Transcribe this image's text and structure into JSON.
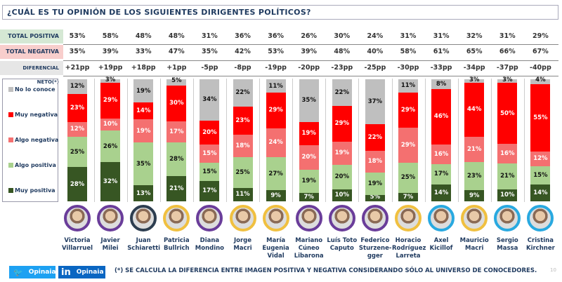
{
  "title": "¿CUÁL ES TU OPINIÓN DE LOS SIGUIENTES DIRIGENTES POLÍTICOS?",
  "rows": {
    "positive_label": "TOTAL POSITIVA",
    "negative_label": "TOTAL NEGATIVA",
    "net_label": "DIFERENCIAL NETO(*)"
  },
  "colors": {
    "no_lo_conoce": "#bfbfbf",
    "muy_negativa": "#ff0000",
    "algo_negativa": "#f47070",
    "algo_positiva": "#a9d18e",
    "muy_positiva": "#375623",
    "positive_bg": "#d5e8d4",
    "negative_bg": "#f8cecc",
    "net_bg": "#e6e6e6"
  },
  "chart_data": {
    "type": "bar",
    "stacked": true,
    "legend": [
      "No lo conoce",
      "Muy negativa",
      "Algo negativa",
      "Algo positiva",
      "Muy positiva"
    ],
    "categories": [
      "Victoria Villarruel",
      "Javier Milei",
      "Juan Schiaretti",
      "Patricia Bullrich",
      "Diana Mondino",
      "Jorge Macri",
      "María Eugenia Vidal",
      "Mariano Cúneo Libarona",
      "Luís Toto Caputo",
      "Federico Sturzene-gger",
      "Horacio Rodríguez Larreta",
      "Axel Kicillof",
      "Mauricio Macri",
      "Sergio Massa",
      "Cristina Kirchner"
    ],
    "series": [
      {
        "name": "Muy positiva",
        "values": [
          28,
          32,
          13,
          21,
          17,
          11,
          9,
          7,
          10,
          5,
          7,
          14,
          9,
          10,
          14
        ]
      },
      {
        "name": "Algo positiva",
        "values": [
          25,
          26,
          35,
          28,
          15,
          25,
          27,
          19,
          20,
          19,
          25,
          17,
          23,
          21,
          15
        ]
      },
      {
        "name": "Algo negativa",
        "values": [
          12,
          10,
          19,
          17,
          15,
          18,
          24,
          20,
          19,
          18,
          29,
          16,
          21,
          16,
          12
        ]
      },
      {
        "name": "Muy negativa",
        "values": [
          23,
          29,
          14,
          30,
          20,
          23,
          29,
          19,
          29,
          22,
          29,
          46,
          44,
          50,
          55
        ]
      },
      {
        "name": "No lo conoce",
        "values": [
          12,
          3,
          19,
          5,
          34,
          22,
          11,
          35,
          22,
          37,
          11,
          8,
          3,
          3,
          4
        ]
      }
    ],
    "total_positiva": [
      "53%",
      "58%",
      "48%",
      "48%",
      "31%",
      "36%",
      "36%",
      "26%",
      "30%",
      "24%",
      "31%",
      "31%",
      "32%",
      "31%",
      "29%"
    ],
    "total_negativa": [
      "35%",
      "39%",
      "33%",
      "47%",
      "35%",
      "42%",
      "53%",
      "39%",
      "48%",
      "40%",
      "58%",
      "61%",
      "65%",
      "66%",
      "67%"
    ],
    "diferencial_neto": [
      "+21pp",
      "+19pp",
      "+18pp",
      "+1pp",
      "-5pp",
      "-8pp",
      "-19pp",
      "-20pp",
      "-23pp",
      "-25pp",
      "-30pp",
      "-33pp",
      "-34pp",
      "-37pp",
      "-40pp"
    ]
  },
  "people": [
    {
      "name1": "Victoria",
      "name2": "Villarruel",
      "name3": "",
      "ring": "#6a3d9a"
    },
    {
      "name1": "Javier",
      "name2": "Milei",
      "name3": "",
      "ring": "#6a3d9a"
    },
    {
      "name1": "Juan",
      "name2": "Schiaretti",
      "name3": "",
      "ring": "#2d3e50"
    },
    {
      "name1": "Patricia",
      "name2": "Bullrich",
      "name3": "",
      "ring": "#f0c040"
    },
    {
      "name1": "Diana",
      "name2": "Mondino",
      "name3": "",
      "ring": "#6a3d9a"
    },
    {
      "name1": "Jorge",
      "name2": "Macri",
      "name3": "",
      "ring": "#f0c040"
    },
    {
      "name1": "María",
      "name2": "Eugenia",
      "name3": "Vidal",
      "ring": "#f0c040"
    },
    {
      "name1": "Mariano",
      "name2": "Cúneo",
      "name3": "Libarona",
      "ring": "#6a3d9a"
    },
    {
      "name1": "Luís Toto",
      "name2": "Caputo",
      "name3": "",
      "ring": "#6a3d9a"
    },
    {
      "name1": "Federico",
      "name2": "Sturzene-",
      "name3": "gger",
      "ring": "#6a3d9a"
    },
    {
      "name1": "Horacio",
      "name2": "Rodríguez",
      "name3": "Larreta",
      "ring": "#f0c040"
    },
    {
      "name1": "Axel",
      "name2": "Kicillof",
      "name3": "",
      "ring": "#29a9e0"
    },
    {
      "name1": "Mauricio",
      "name2": "Macri",
      "name3": "",
      "ring": "#f0c040"
    },
    {
      "name1": "Sergio",
      "name2": "Massa",
      "name3": "",
      "ring": "#29a9e0"
    },
    {
      "name1": "Cristina",
      "name2": "Kirchner",
      "name3": "",
      "ring": "#29a9e0"
    }
  ],
  "footer": {
    "twitter": "Opinaia",
    "linkedin": "Opinaia",
    "linkedin_glyph": "in",
    "note": "(*) SE CALCULA LA DIFERENCIA ENTRE IMAGEN POSITIVA Y NEGATIVA CONSIDERANDO SÓLO AL UNIVERSO DE CONOCEDORES.",
    "page": "10"
  }
}
